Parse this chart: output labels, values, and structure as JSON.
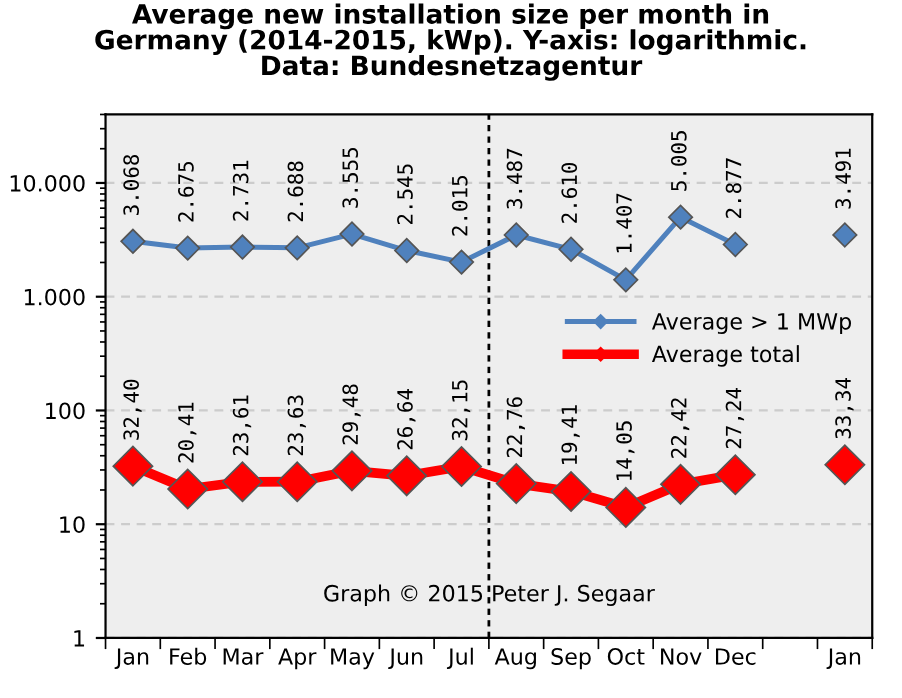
{
  "chart_data": {
    "type": "line",
    "title": "Average new installation size per month in\nGermany (2014-2015, kWp). Y-axis: logarithmic.\nData: Bundesnetzagentur",
    "categories": [
      "Jan",
      "Feb",
      "Mar",
      "Apr",
      "May",
      "Jun",
      "Jul",
      "Aug",
      "Sep",
      "Oct",
      "Nov",
      "Dec",
      null,
      "Jan"
    ],
    "series": [
      {
        "name": "Average > 1 MWp",
        "color": "#4f81bd",
        "values": [
          3068,
          2675,
          2731,
          2688,
          3555,
          2545,
          2015,
          3487,
          2610,
          1407,
          5005,
          2877,
          null,
          3491
        ],
        "value_labels": [
          "3.068",
          "2.675",
          "2.731",
          "2.688",
          "3.555",
          "2.545",
          "2.015",
          "3.487",
          "2.610",
          "1.407",
          "5.005",
          "2.877",
          null,
          "3.491"
        ]
      },
      {
        "name": "Average total",
        "color": "#ff0000",
        "values": [
          32.4,
          20.41,
          23.61,
          23.63,
          29.48,
          26.64,
          32.15,
          22.76,
          19.41,
          14.05,
          22.42,
          27.24,
          null,
          33.34
        ],
        "value_labels": [
          "32,40",
          "20,41",
          "23,61",
          "23,63",
          "29,48",
          "26,64",
          "32,15",
          "22,76",
          "19,41",
          "14,05",
          "22,42",
          "27,24",
          null,
          "33,34"
        ]
      }
    ],
    "log": true,
    "ylim": [
      1,
      40000
    ],
    "yticks": [
      1,
      10,
      100,
      {
        "value": 1000,
        "label": "1.000"
      },
      {
        "value": 10000,
        "label": "10.000"
      }
    ],
    "grid": "y",
    "legend": "right",
    "marker": "diamond",
    "line_style": "solid",
    "annotations": [
      "Graph © 2015 Peter J. Segaar"
    ]
  }
}
